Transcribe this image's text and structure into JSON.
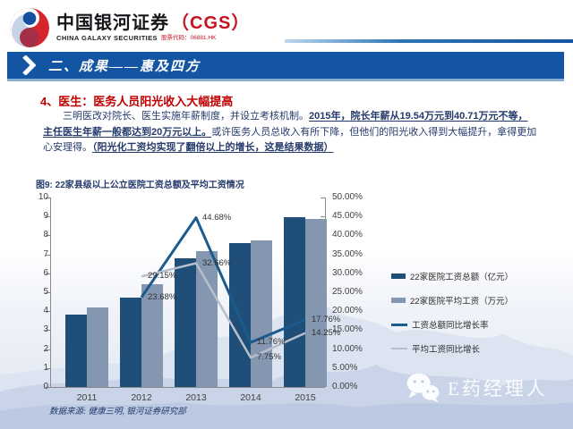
{
  "header": {
    "logo_cn": "中国银河证券",
    "logo_cgs": "（CGS）",
    "logo_en": "CHINA GALAXY SECURITIES",
    "logo_ticker": "股票代码：06881.HK"
  },
  "banner": {
    "title": "二、成果——惠及四方"
  },
  "section": {
    "heading": "4、医生：医务人员阳光收入大幅提高",
    "para_1": "三明医改对院长、医生实施年薪制度，并设立考核机制。",
    "para_2_underline": "2015年，院长年薪从19.54万元到40.71万元不等，主任医生年薪一般都达到20万元以上。",
    "para_3": "或许医务人员总收入有所下降，但他们的阳光收入得到大幅提升，拿得更加心安理得。",
    "para_4_underline": "（阳光化工资均实现了翻倍以上的增长，这是结果数据）"
  },
  "chart_data": {
    "type": "bar",
    "subtype": "bar+line combo, dual axis",
    "title": "图9: 22家县级以上公立医院工资总额及平均工资情况",
    "categories": [
      "2011",
      "2012",
      "2013",
      "2014",
      "2015"
    ],
    "bar_series": [
      {
        "name": "22家医院工资总额（亿元）",
        "axis": "left",
        "color": "#1f4e79",
        "values": [
          3.8,
          4.7,
          6.8,
          7.6,
          8.95
        ]
      },
      {
        "name": "22家医院平均工资（万元）",
        "axis": "left",
        "color": "#8496b0",
        "values": [
          4.2,
          5.42,
          7.19,
          7.75,
          8.85
        ]
      }
    ],
    "line_series": [
      {
        "name": "工资总额同比增长率",
        "axis": "right",
        "color": "#1b5a8c",
        "width": 3,
        "values": [
          null,
          23.68,
          44.68,
          11.76,
          17.76
        ],
        "labels": [
          null,
          "23.68%",
          "44.68%",
          "11.76%",
          "17.76%"
        ]
      },
      {
        "name": "平均工资同比增长",
        "axis": "right",
        "color": "#b8bfca",
        "width": 2.5,
        "values": [
          null,
          29.15,
          32.66,
          7.75,
          14.25
        ],
        "labels": [
          null,
          "29.15%",
          "32.66%",
          "7.75%",
          "14.25%"
        ]
      }
    ],
    "left_axis": {
      "min": 0,
      "max": 10,
      "step": 1
    },
    "right_axis": {
      "min": 0,
      "max": 50,
      "step": 5,
      "format": "percent-2-decimals"
    },
    "legend_position": "right",
    "grid": false
  },
  "source_note": "数据来源: 健康三明, 银河证券研究部",
  "watermark": {
    "label": "E药经理人"
  },
  "colors": {
    "banner_blue": "#1355a2",
    "accent_red": "#c00000",
    "text_navy": "#243a6b",
    "bar_dark": "#1f4e79",
    "bar_light": "#8496b0",
    "line_dark": "#1b5a8c",
    "line_light": "#b8bfca"
  }
}
